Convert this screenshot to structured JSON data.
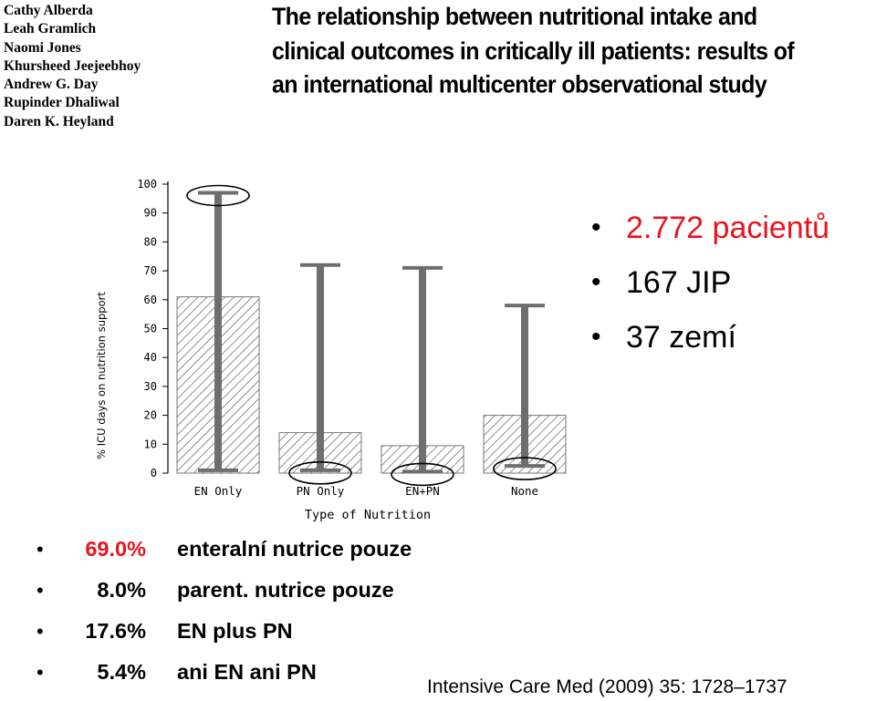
{
  "authors": [
    "Cathy Alberda",
    "Leah Gramlich",
    "Naomi Jones",
    "Khursheed Jeejeebhoy",
    "Andrew G. Day",
    "Rupinder Dhaliwal",
    "Daren K. Heyland"
  ],
  "paper_title": "The relationship between nutritional intake and clinical outcomes in critically ill patients: results of an international multicenter observational study",
  "facts": [
    {
      "text": "2.772 pacientů",
      "color": "#e8141c"
    },
    {
      "text": "167 JIP",
      "color": "#000000"
    },
    {
      "text": "37 zemí",
      "color": "#000000"
    }
  ],
  "stats": [
    {
      "pct": "69.0%",
      "desc": "enteralní nutrice  pouze",
      "color": "#e8141c"
    },
    {
      "pct": "8.0%",
      "desc": "parent. nutrice  pouze",
      "color": "#000000"
    },
    {
      "pct": "17.6%",
      "desc": "EN plus PN",
      "color": "#000000"
    },
    {
      "pct": "5.4%",
      "desc": "ani EN ani PN",
      "color": "#000000"
    }
  ],
  "citation": "Intensive Care Med (2009) 35: 1728–1737",
  "chart_data": {
    "type": "bar",
    "xlabel": "Type of Nutrition",
    "ylabel": "% ICU days on nutrition support",
    "ylim": [
      0,
      100
    ],
    "yticks": [
      0,
      10,
      20,
      30,
      40,
      50,
      60,
      70,
      80,
      90,
      100
    ],
    "categories": [
      "EN Only",
      "PN Only",
      "EN+PN",
      "None"
    ],
    "values": [
      61,
      14,
      9.5,
      20
    ],
    "error_high": [
      97,
      72,
      71,
      58
    ],
    "error_low": [
      1,
      1,
      0.5,
      2.5
    ],
    "circled_high": [
      true,
      false,
      false,
      false
    ],
    "circled_low": [
      false,
      true,
      true,
      true
    ],
    "bar_fill": "hatched",
    "error_color": "#6e6e6e"
  }
}
